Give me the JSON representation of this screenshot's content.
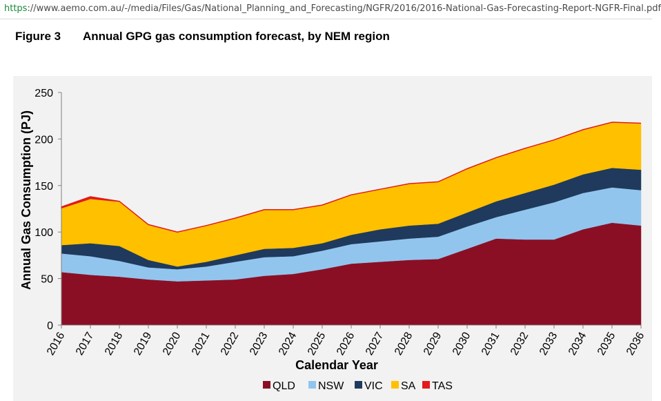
{
  "browser": {
    "url_scheme": "https",
    "url_rest": "://www.aemo.com.au/-/media/Files/Gas/National_Planning_and_Forecasting/NGFR/2016/2016-National-Gas-Forecasting-Report-NGFR-Final.pdf"
  },
  "figure": {
    "label": "Figure 3",
    "title": "Annual GPG gas consumption forecast, by NEM region"
  },
  "chart_data": {
    "type": "area",
    "stacked": true,
    "xlabel": "Calendar Year",
    "ylabel": "Annual Gas Consumption (PJ)",
    "ylim": [
      0,
      250
    ],
    "yticks": [
      0,
      50,
      100,
      150,
      200,
      250
    ],
    "categories": [
      "2016",
      "2017",
      "2018",
      "2019",
      "2020",
      "2021",
      "2022",
      "2023",
      "2024",
      "2025",
      "2026",
      "2027",
      "2028",
      "2029",
      "2030",
      "2031",
      "2032",
      "2033",
      "2034",
      "2035",
      "2036"
    ],
    "series": [
      {
        "name": "QLD",
        "color": "#8b0f24",
        "values": [
          57,
          54,
          52,
          49,
          47,
          48,
          49,
          53,
          55,
          60,
          66,
          68,
          70,
          71,
          82,
          93,
          92,
          92,
          103,
          110,
          107
        ]
      },
      {
        "name": "NSW",
        "color": "#92c5ee",
        "values": [
          20,
          20,
          17,
          13,
          13,
          15,
          19,
          20,
          19,
          20,
          21,
          22,
          23,
          24,
          24,
          23,
          32,
          40,
          39,
          38,
          38
        ]
      },
      {
        "name": "VIC",
        "color": "#1f3a5c",
        "values": [
          9,
          14,
          16,
          8,
          3,
          5,
          7,
          9,
          9,
          8,
          10,
          13,
          14,
          14,
          15,
          17,
          18,
          19,
          20,
          21,
          22
        ]
      },
      {
        "name": "SA",
        "color": "#ffc000",
        "values": [
          40,
          48,
          48,
          38,
          37,
          39,
          40,
          42,
          41,
          41,
          43,
          43,
          45,
          45,
          47,
          47,
          48,
          48,
          48,
          49,
          50
        ]
      },
      {
        "name": "TAS",
        "color": "#e31a1c",
        "values": [
          1,
          2,
          0,
          0,
          0,
          0,
          0,
          0,
          0,
          0,
          0,
          0,
          0,
          0,
          0,
          0,
          0,
          0,
          0,
          0,
          0
        ]
      }
    ],
    "legend_position": "bottom-center",
    "grid": false
  }
}
